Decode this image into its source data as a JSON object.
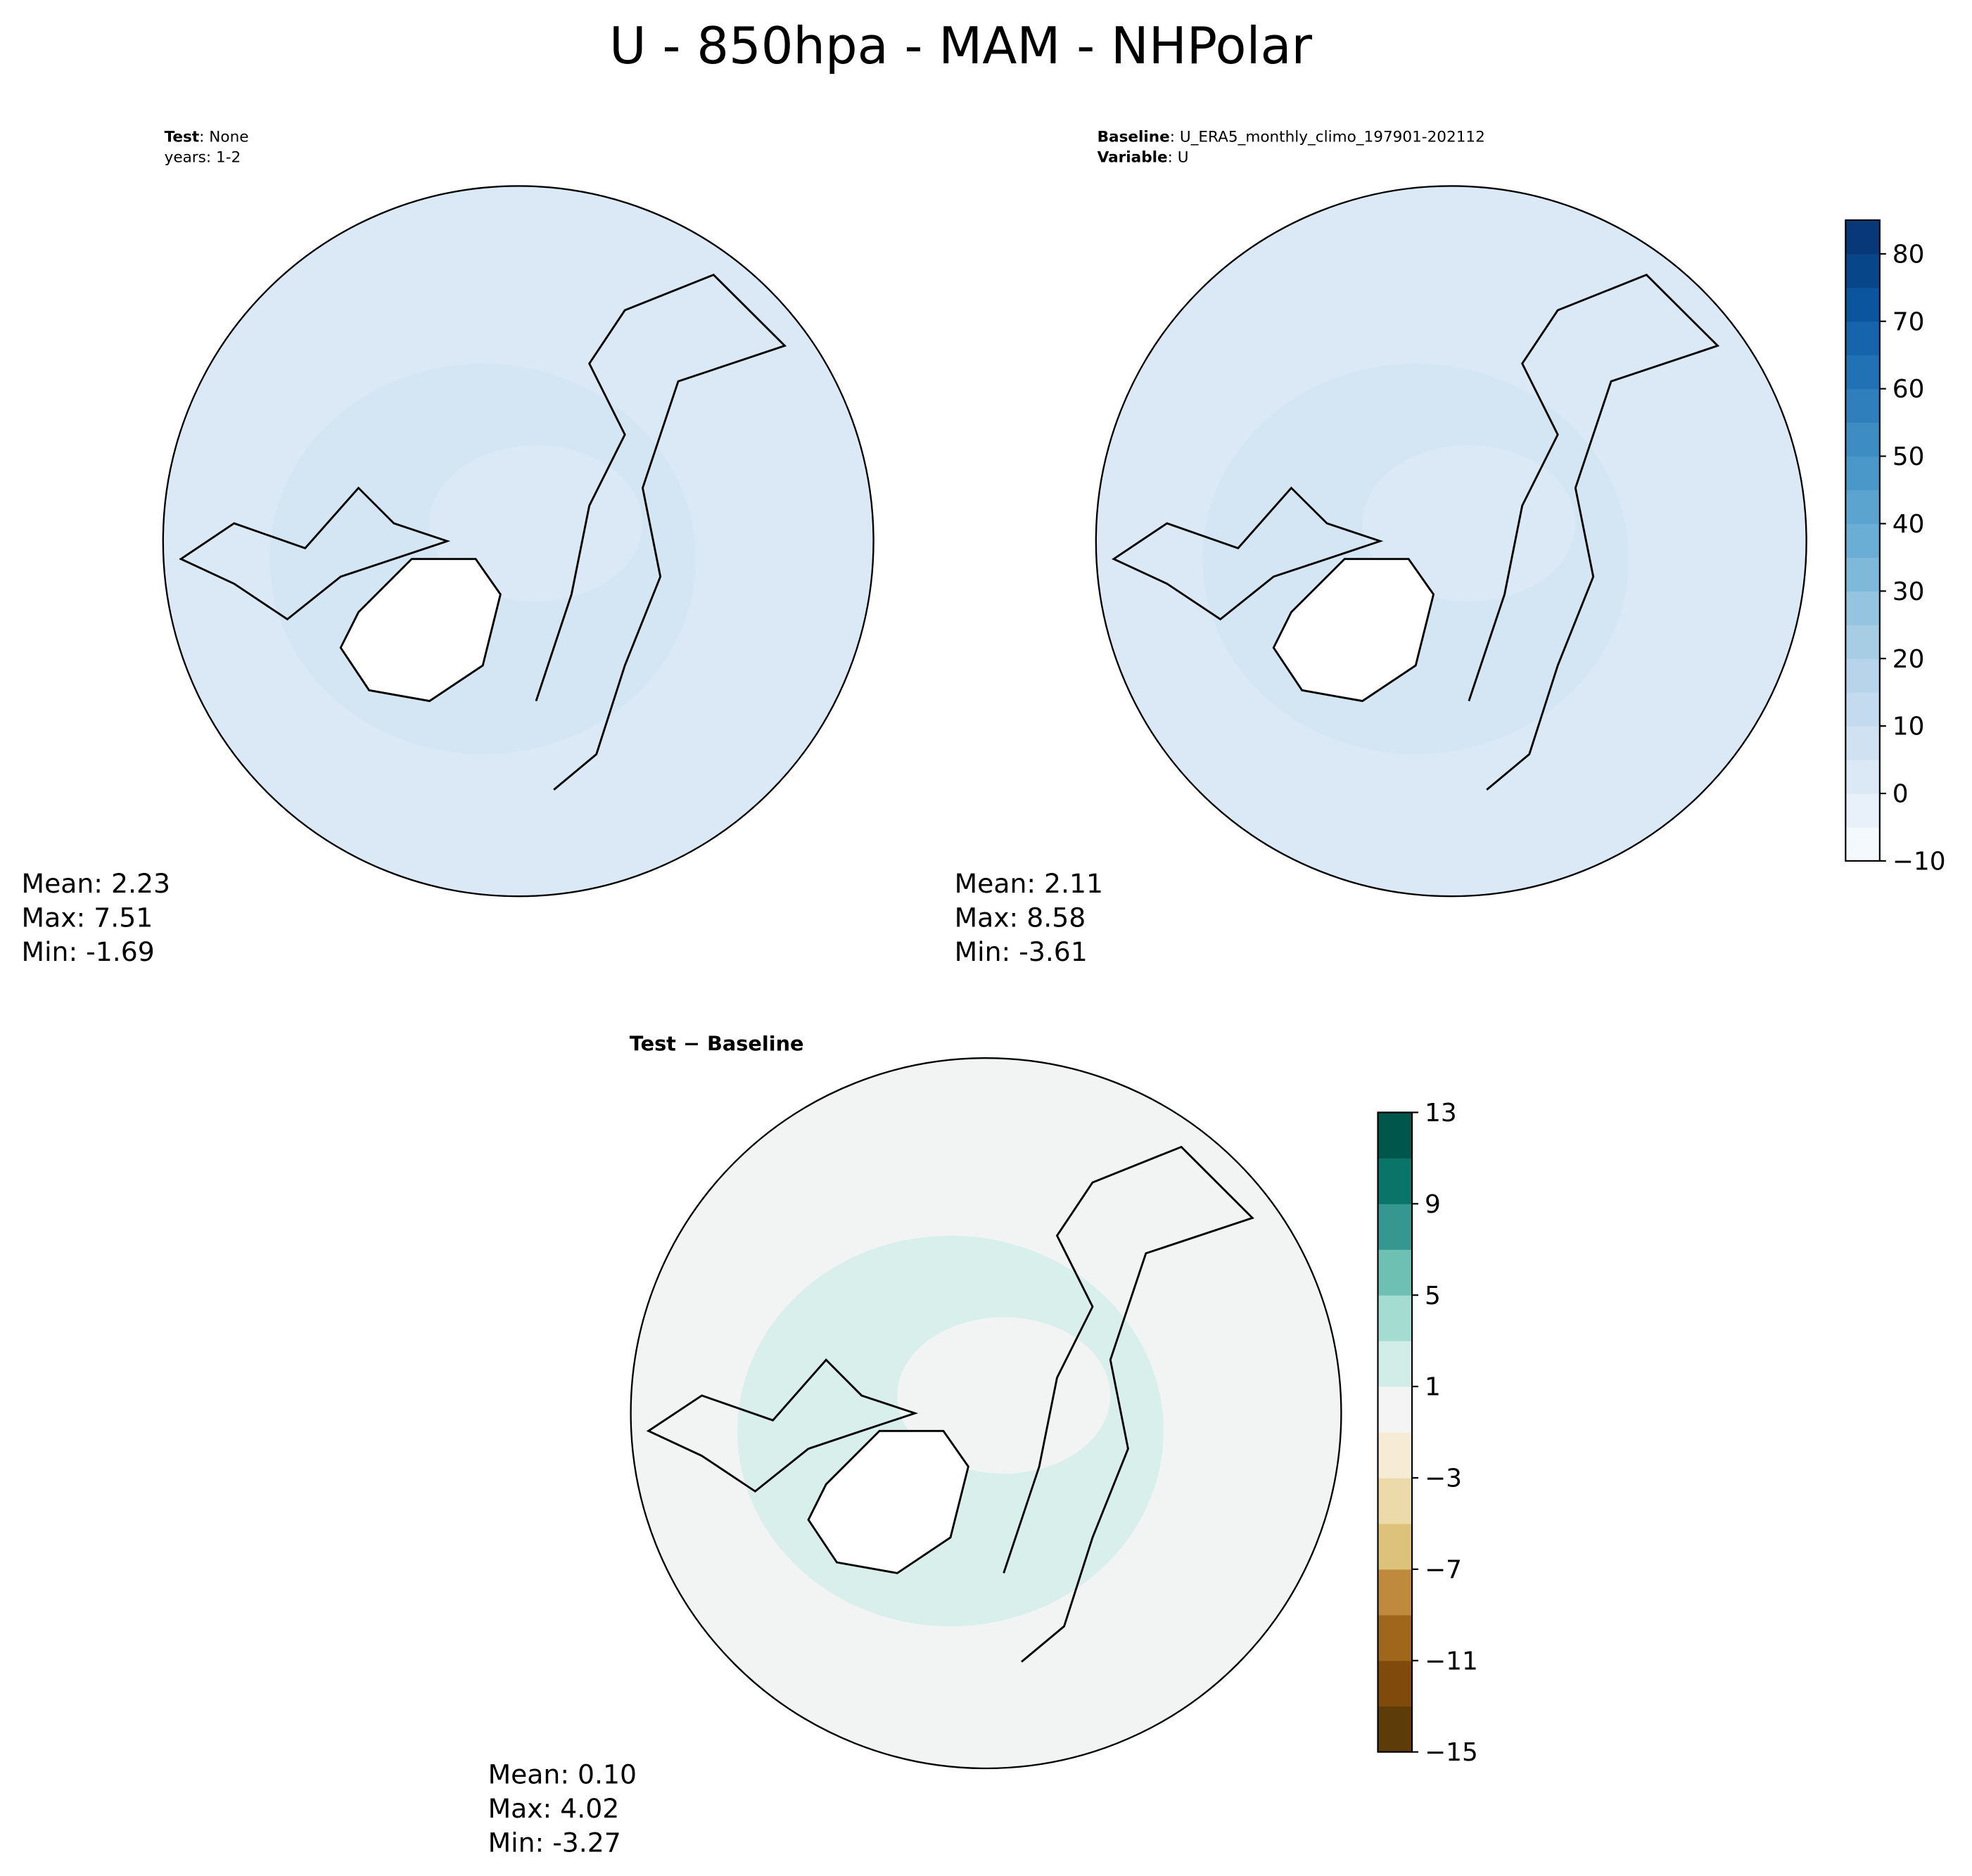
{
  "title": "U - 850hpa - MAM - NHPolar",
  "chart_data": [
    {
      "type": "map",
      "fill": "#dbe9f6",
      "band": "#d2e3f3",
      "header": [
        {
          "bold": "Test",
          "text": ": None"
        },
        {
          "text": "years: 1-2"
        }
      ],
      "stats": [
        "Mean:  2.23",
        "Max:  7.51",
        "Min: -1.69"
      ]
    },
    {
      "type": "map",
      "fill": "#dbe9f6",
      "band": "#d2e3f3",
      "header": [
        {
          "bold": "Baseline",
          "text": ": U_ERA5_monthly_climo_197901-202112"
        },
        {
          "bold": "Variable",
          "text": ": U"
        }
      ],
      "stats": [
        "Mean:  2.11",
        "Max:  8.58",
        "Min: -3.61"
      ],
      "colorbar": {
        "ylim": [
          -10,
          85
        ],
        "yticks": [
          {
            "value": -10,
            "label": "−10"
          },
          0,
          10,
          20,
          30,
          40,
          50,
          60,
          70,
          80
        ],
        "colors": [
          "#f4f9fe",
          "#e8f1fa",
          "#dbe9f6",
          "#d0e2f2",
          "#c4daee",
          "#b7d4ea",
          "#a6cde4",
          "#94c4df",
          "#7fb9da",
          "#6aaed6",
          "#5ca4d0",
          "#4a98c9",
          "#3d8dc3",
          "#2f7fbc",
          "#2171b5",
          "#1664ab",
          "#0b559f",
          "#08468a",
          "#083877"
        ]
      }
    },
    {
      "type": "map",
      "fill": "#f2f4f3",
      "band": "#d2ede8",
      "header": [
        {
          "bold": "Test − Baseline"
        }
      ],
      "stats": [
        "Mean:  0.10",
        "Max:  4.02",
        "Min: -3.27"
      ],
      "colorbar": {
        "ylim": [
          -15,
          13
        ],
        "yticks": [
          {
            "value": -15,
            "label": "−15"
          },
          {
            "value": -11,
            "label": "−11"
          },
          {
            "value": -7,
            "label": "−7"
          },
          {
            "value": -3,
            "label": "−3"
          },
          1,
          5,
          9,
          13
        ],
        "colors": [
          "#5e3c09",
          "#7f4a0b",
          "#a0661b",
          "#c08a3e",
          "#dcc27a",
          "#ecdaaa",
          "#f6ebd4",
          "#f3f4f3",
          "#d2ede8",
          "#a4dcd1",
          "#6ec0b3",
          "#35978f",
          "#0b7468",
          "#01564b"
        ]
      }
    }
  ]
}
